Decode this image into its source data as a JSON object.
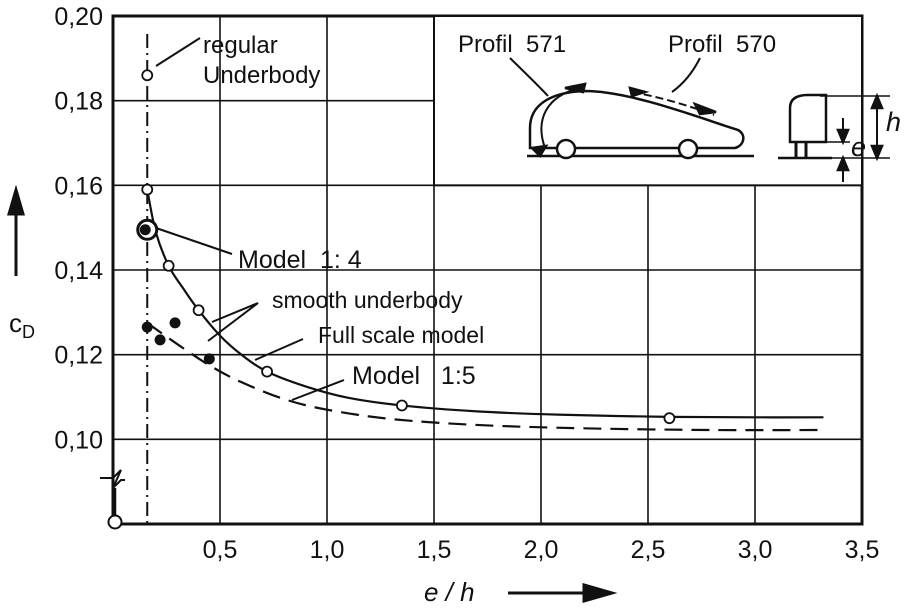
{
  "chart_data": {
    "type": "scatter",
    "title": "",
    "xlabel": "e / h",
    "ylabel": "c_D",
    "xlim": [
      0,
      3.5
    ],
    "ylim": [
      0.08,
      0.2
    ],
    "x_ticks": [
      0.5,
      1.0,
      1.5,
      2.0,
      2.5,
      3.0,
      3.5
    ],
    "x_tick_labels": [
      "0,5",
      "1,0",
      "1,5",
      "2,0",
      "2,5",
      "3,0",
      "3,5"
    ],
    "y_ticks": [
      0.1,
      0.12,
      0.14,
      0.16,
      0.18,
      0.2
    ],
    "y_tick_labels": [
      "0,10",
      "0,12",
      "0,14",
      "0,16",
      "0,18",
      "0,20"
    ],
    "grid": true,
    "series": [
      {
        "name": "Full scale model",
        "marker": "open-circle",
        "curve": "solid",
        "x": [
          0.16,
          0.26,
          0.4,
          0.72,
          1.35,
          2.6
        ],
        "y": [
          0.159,
          0.141,
          0.1305,
          0.116,
          0.108,
          0.105
        ],
        "curve_x": [
          0.16,
          0.2,
          0.26,
          0.33,
          0.4,
          0.5,
          0.6,
          0.72,
          0.9,
          1.1,
          1.35,
          1.7,
          2.1,
          2.6,
          3.0,
          3.32
        ],
        "curve_y": [
          0.159,
          0.149,
          0.141,
          0.1355,
          0.1305,
          0.1245,
          0.12,
          0.116,
          0.1125,
          0.1098,
          0.108,
          0.1066,
          0.1058,
          0.1053,
          0.1052,
          0.1052
        ]
      },
      {
        "name": "Model 1:5",
        "marker": "filled-circle",
        "curve": "dashed",
        "x": [
          0.16,
          0.22,
          0.29,
          0.45
        ],
        "y": [
          0.1265,
          0.1235,
          0.1275,
          0.119
        ],
        "curve_x": [
          0.16,
          0.3,
          0.45,
          0.6,
          0.8,
          1.0,
          1.3,
          1.7,
          2.2,
          2.8,
          3.32
        ],
        "curve_y": [
          0.1275,
          0.1225,
          0.1175,
          0.1135,
          0.1095,
          0.107,
          0.1048,
          0.1034,
          0.1026,
          0.1022,
          0.1022
        ]
      },
      {
        "name": "Model 1:4",
        "marker": "large-circle",
        "x": [
          0.16
        ],
        "y": [
          0.1495
        ]
      },
      {
        "name": "regular Underbody",
        "marker": "open-circle",
        "x": [
          0.16
        ],
        "y": [
          0.186
        ]
      }
    ],
    "annotations": {
      "regular_underbody": [
        "regular",
        "Underbody"
      ],
      "model_14": "Model  1: 4",
      "smooth_underbody": "smooth underbody",
      "full_scale": "Full scale model",
      "model_15": "Model   1:5",
      "profil_571": "Profil  571",
      "profil_570": "Profil  570",
      "h": "h",
      "e": "e"
    }
  }
}
